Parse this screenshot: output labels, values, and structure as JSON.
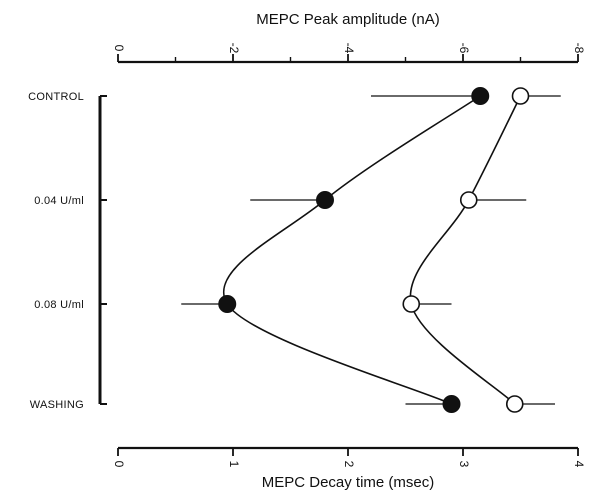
{
  "chart_data": {
    "type": "scatter",
    "top_axis": {
      "title": "MEPC Peak amplitude (nA)",
      "ticks": [
        0,
        -2,
        -4,
        -6,
        -8
      ],
      "tick_labels": [
        "0",
        "-2",
        "-4",
        "-6",
        "-8"
      ],
      "range": [
        0,
        -8
      ]
    },
    "bottom_axis": {
      "title": "MEPC Decay time (msec)",
      "ticks": [
        0,
        1,
        2,
        3,
        4
      ],
      "tick_labels": [
        "0",
        "1",
        "2",
        "3",
        "4"
      ],
      "range": [
        0,
        4
      ]
    },
    "categories": [
      "CONTROL",
      "0.04 U/ml",
      "0.08 U/ml",
      "WASHING"
    ],
    "series": [
      {
        "marker": "filled-circle",
        "axis": "top",
        "values": [
          -6.3,
          -3.6,
          -1.9,
          -5.8
        ],
        "error_bars": [
          [
            -4.4,
            -6.3
          ],
          [
            -2.3,
            -3.6
          ],
          [
            -1.1,
            -1.9
          ],
          [
            -5.0,
            -5.8
          ]
        ]
      },
      {
        "marker": "open-circle",
        "axis": "bottom",
        "values": [
          3.5,
          3.05,
          2.55,
          3.45
        ],
        "error_bars": [
          [
            3.5,
            3.85
          ],
          [
            3.05,
            3.55
          ],
          [
            2.55,
            2.9
          ],
          [
            3.45,
            3.8
          ]
        ]
      }
    ],
    "grid": false
  }
}
